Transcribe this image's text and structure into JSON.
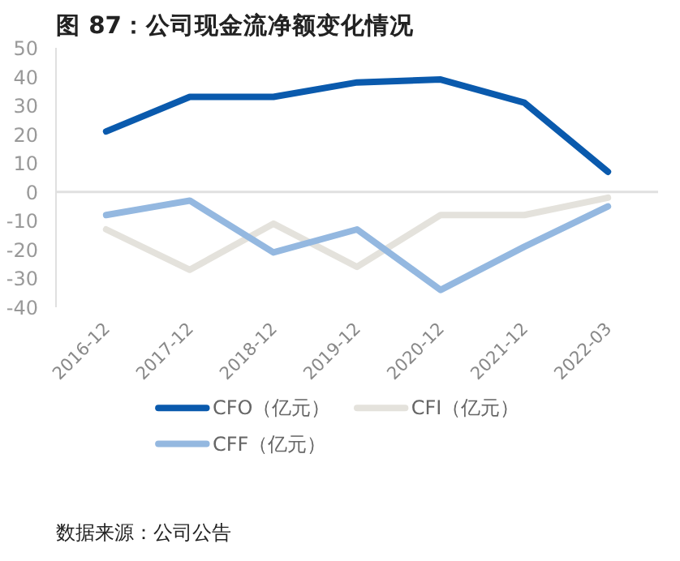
{
  "chart_data": {
    "type": "line",
    "title": "图 87：公司现金流净额变化情况",
    "categories": [
      "2016-12",
      "2017-12",
      "2018-12",
      "2019-12",
      "2020-12",
      "2021-12",
      "2022-03"
    ],
    "series": [
      {
        "name": "CFO（亿元）",
        "color": "#0a5aad",
        "values": [
          21,
          33,
          33,
          38,
          39,
          31,
          7
        ]
      },
      {
        "name": "CFI（亿元）",
        "color": "#e4e2dc",
        "values": [
          -13,
          -27,
          -11,
          -26,
          -8,
          -8,
          -2
        ]
      },
      {
        "name": "CFF（亿元）",
        "color": "#94b8e0",
        "values": [
          -8,
          -3,
          -21,
          -13,
          -34,
          -19,
          -5
        ]
      }
    ],
    "ylim": [
      -40,
      50
    ],
    "yticks": [
      -40,
      -30,
      -20,
      -10,
      0,
      10,
      20,
      30,
      40,
      50
    ],
    "ref_lines": [
      {
        "axis": "y",
        "value": 0,
        "color": "#e0e0e0"
      }
    ],
    "grid": false,
    "legend": "bottom",
    "marker": "none",
    "line_style": "solid",
    "annotations": [
      "数据来源：公司公告"
    ]
  }
}
